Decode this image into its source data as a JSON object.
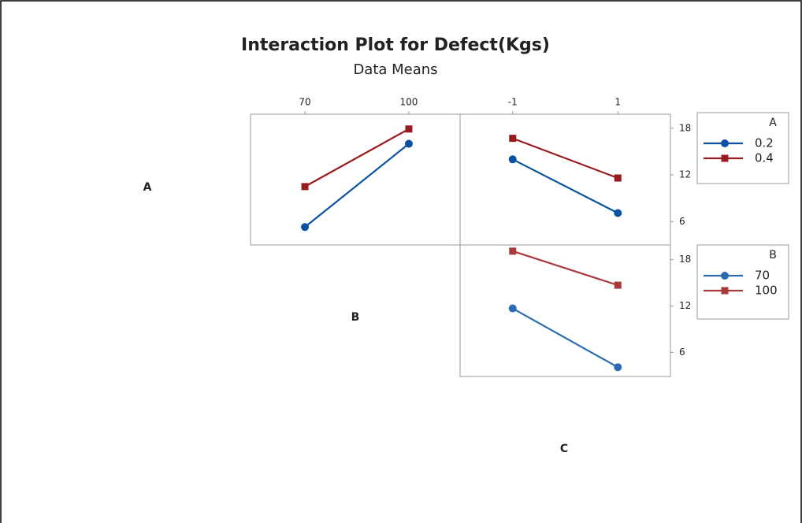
{
  "title": "Interaction Plot for Defect(Kgs)",
  "subtitle": "Data Means",
  "factor_labels": [
    "A",
    "B",
    "C"
  ],
  "chart_data": [
    {
      "type": "line",
      "x": [
        70,
        100
      ],
      "xlim": [
        54.3,
        114.8
      ],
      "xticks": [
        70,
        100
      ],
      "ylim": [
        3,
        19.8
      ],
      "series": [
        {
          "color": "#0a52a0",
          "marker": "circle",
          "values": [
            5.3,
            16.0
          ]
        },
        {
          "color": "#981b1e",
          "marker": "square",
          "values": [
            10.5,
            17.9
          ]
        }
      ]
    },
    {
      "type": "line",
      "x": [
        -1,
        1
      ],
      "xlim": [
        -2.0,
        2.0
      ],
      "xticks": [
        -1,
        1
      ],
      "ylim": [
        3,
        19.8
      ],
      "yticks": [
        6,
        12,
        18
      ],
      "legend_title": "A",
      "series": [
        {
          "name": "0.2",
          "color": "#0a52a0",
          "marker": "circle",
          "values": [
            14.0,
            7.1
          ]
        },
        {
          "name": "0.4",
          "color": "#981b1e",
          "marker": "square",
          "values": [
            16.7,
            11.6
          ]
        }
      ]
    },
    {
      "type": "line",
      "x": [
        -1,
        1
      ],
      "xlim": [
        -2.0,
        2.0
      ],
      "ylim": [
        2.9,
        19.9
      ],
      "yticks": [
        6,
        12,
        18
      ],
      "legend_title": "B",
      "series": [
        {
          "name": "70",
          "color": "#2b6cb0",
          "marker": "circle",
          "values": [
            11.7,
            4.1
          ]
        },
        {
          "name": "100",
          "color": "#a83a3b",
          "marker": "square",
          "values": [
            19.1,
            14.7
          ]
        }
      ]
    }
  ]
}
